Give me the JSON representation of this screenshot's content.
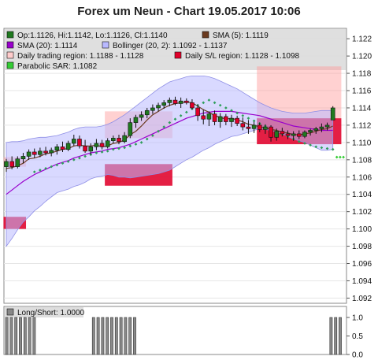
{
  "chart_data": [
    {
      "type": "candlestick",
      "title": "Forex um Neun - Chart 19.05.2017 10:06",
      "ylim": [
        1.0914,
        1.1232
      ],
      "yticks": [
        "1.122",
        "1.120",
        "1.118",
        "1.116",
        "1.114",
        "1.112",
        "1.110",
        "1.108",
        "1.106",
        "1.104",
        "1.102",
        "1.100",
        "1.098",
        "1.096",
        "1.094",
        "1.092"
      ],
      "grid": true,
      "legend_placement": "top",
      "legend": [
        {
          "label": "Op:1.1126, Hi:1.1142, Lo:1.1126, Cl:1.1140",
          "color": "#1f7a1f",
          "icon": "candle-swatch"
        },
        {
          "label": "SMA (5): 1.1119",
          "color": "#6b3a1f",
          "icon": "line-swatch"
        },
        {
          "label": "SMA (20): 1.1114",
          "color": "#9900cc",
          "icon": "line-swatch"
        },
        {
          "label": "Bollinger (20, 2): 1.1092 - 1.1137",
          "color": "#b9b9ff",
          "icon": "band-swatch"
        },
        {
          "label": "Daily trading region: 1.1188 - 1.1128",
          "color": "#ffcccc",
          "icon": "region-swatch"
        },
        {
          "label": "Daily S/L region: 1.1128 - 1.1098",
          "color": "#e0002a",
          "icon": "region-swatch"
        },
        {
          "label": "Parabolic SAR: 1.1082",
          "color": "#33cc33",
          "icon": "dot-swatch"
        }
      ],
      "candles": [
        {
          "o": 1.1072,
          "h": 1.1081,
          "l": 1.1066,
          "c": 1.1078
        },
        {
          "o": 1.1078,
          "h": 1.1084,
          "l": 1.1069,
          "c": 1.1072
        },
        {
          "o": 1.1072,
          "h": 1.1084,
          "l": 1.107,
          "c": 1.1081
        },
        {
          "o": 1.1081,
          "h": 1.1088,
          "l": 1.1076,
          "c": 1.1084
        },
        {
          "o": 1.1084,
          "h": 1.1092,
          "l": 1.108,
          "c": 1.1089
        },
        {
          "o": 1.1089,
          "h": 1.1093,
          "l": 1.1082,
          "c": 1.1086
        },
        {
          "o": 1.1086,
          "h": 1.1094,
          "l": 1.1083,
          "c": 1.109
        },
        {
          "o": 1.109,
          "h": 1.1095,
          "l": 1.1085,
          "c": 1.1088
        },
        {
          "o": 1.1088,
          "h": 1.1094,
          "l": 1.1084,
          "c": 1.1091
        },
        {
          "o": 1.1091,
          "h": 1.1098,
          "l": 1.1086,
          "c": 1.1095
        },
        {
          "o": 1.1095,
          "h": 1.1101,
          "l": 1.1089,
          "c": 1.1092
        },
        {
          "o": 1.1092,
          "h": 1.1102,
          "l": 1.109,
          "c": 1.1099
        },
        {
          "o": 1.1099,
          "h": 1.1109,
          "l": 1.1096,
          "c": 1.1104
        },
        {
          "o": 1.1104,
          "h": 1.1108,
          "l": 1.1093,
          "c": 1.1096
        },
        {
          "o": 1.1096,
          "h": 1.1103,
          "l": 1.1088,
          "c": 1.109
        },
        {
          "o": 1.109,
          "h": 1.1099,
          "l": 1.1086,
          "c": 1.1095
        },
        {
          "o": 1.1095,
          "h": 1.1104,
          "l": 1.1091,
          "c": 1.1099
        },
        {
          "o": 1.1099,
          "h": 1.1103,
          "l": 1.1092,
          "c": 1.1095
        },
        {
          "o": 1.1095,
          "h": 1.1105,
          "l": 1.1093,
          "c": 1.1102
        },
        {
          "o": 1.1102,
          "h": 1.1108,
          "l": 1.1099,
          "c": 1.1105
        },
        {
          "o": 1.1105,
          "h": 1.1109,
          "l": 1.1098,
          "c": 1.1101
        },
        {
          "o": 1.1101,
          "h": 1.1112,
          "l": 1.1099,
          "c": 1.1108
        },
        {
          "o": 1.1108,
          "h": 1.1128,
          "l": 1.1105,
          "c": 1.1123
        },
        {
          "o": 1.1123,
          "h": 1.1132,
          "l": 1.1117,
          "c": 1.1129
        },
        {
          "o": 1.1129,
          "h": 1.1136,
          "l": 1.1125,
          "c": 1.1132
        },
        {
          "o": 1.1132,
          "h": 1.114,
          "l": 1.1128,
          "c": 1.1137
        },
        {
          "o": 1.1137,
          "h": 1.1144,
          "l": 1.1133,
          "c": 1.114
        },
        {
          "o": 1.114,
          "h": 1.1146,
          "l": 1.1136,
          "c": 1.1143
        },
        {
          "o": 1.1143,
          "h": 1.1149,
          "l": 1.1139,
          "c": 1.1146
        },
        {
          "o": 1.1146,
          "h": 1.1152,
          "l": 1.1142,
          "c": 1.1149
        },
        {
          "o": 1.1149,
          "h": 1.1153,
          "l": 1.1143,
          "c": 1.1145
        },
        {
          "o": 1.1145,
          "h": 1.1152,
          "l": 1.114,
          "c": 1.1148
        },
        {
          "o": 1.1148,
          "h": 1.1151,
          "l": 1.1144,
          "c": 1.1146
        },
        {
          "o": 1.1146,
          "h": 1.115,
          "l": 1.1138,
          "c": 1.114
        },
        {
          "o": 1.114,
          "h": 1.1144,
          "l": 1.1125,
          "c": 1.1131
        },
        {
          "o": 1.1131,
          "h": 1.1138,
          "l": 1.1121,
          "c": 1.1127
        },
        {
          "o": 1.1127,
          "h": 1.1136,
          "l": 1.1119,
          "c": 1.1133
        },
        {
          "o": 1.1133,
          "h": 1.1137,
          "l": 1.112,
          "c": 1.1124
        },
        {
          "o": 1.1124,
          "h": 1.1134,
          "l": 1.1117,
          "c": 1.113
        },
        {
          "o": 1.113,
          "h": 1.1133,
          "l": 1.112,
          "c": 1.1124
        },
        {
          "o": 1.1124,
          "h": 1.1132,
          "l": 1.1118,
          "c": 1.1128
        },
        {
          "o": 1.1128,
          "h": 1.1131,
          "l": 1.1119,
          "c": 1.1122
        },
        {
          "o": 1.1122,
          "h": 1.1129,
          "l": 1.1114,
          "c": 1.1118
        },
        {
          "o": 1.1118,
          "h": 1.1126,
          "l": 1.111,
          "c": 1.1116
        },
        {
          "o": 1.1116,
          "h": 1.1124,
          "l": 1.1111,
          "c": 1.112
        },
        {
          "o": 1.112,
          "h": 1.1123,
          "l": 1.1112,
          "c": 1.1115
        },
        {
          "o": 1.1115,
          "h": 1.1121,
          "l": 1.111,
          "c": 1.1118
        },
        {
          "o": 1.1118,
          "h": 1.112,
          "l": 1.1101,
          "c": 1.1106
        },
        {
          "o": 1.1106,
          "h": 1.1116,
          "l": 1.1102,
          "c": 1.1113
        },
        {
          "o": 1.1113,
          "h": 1.1117,
          "l": 1.1107,
          "c": 1.111
        },
        {
          "o": 1.111,
          "h": 1.1114,
          "l": 1.1104,
          "c": 1.1108
        },
        {
          "o": 1.1108,
          "h": 1.1113,
          "l": 1.1102,
          "c": 1.111
        },
        {
          "o": 1.111,
          "h": 1.1114,
          "l": 1.1104,
          "c": 1.1107
        },
        {
          "o": 1.1107,
          "h": 1.1114,
          "l": 1.1105,
          "c": 1.1112
        },
        {
          "o": 1.1112,
          "h": 1.1116,
          "l": 1.1108,
          "c": 1.1114
        },
        {
          "o": 1.1114,
          "h": 1.1118,
          "l": 1.111,
          "c": 1.1116
        },
        {
          "o": 1.1116,
          "h": 1.1122,
          "l": 1.1112,
          "c": 1.1118
        },
        {
          "o": 1.1118,
          "h": 1.1123,
          "l": 1.1114,
          "c": 1.112
        },
        {
          "o": 1.1126,
          "h": 1.1142,
          "l": 1.1126,
          "c": 1.114
        }
      ],
      "sma5": [
        1.107,
        1.1071,
        1.1073,
        1.1076,
        1.1081,
        1.1082,
        1.1084,
        1.1087,
        1.1088,
        1.109,
        1.1092,
        1.1093,
        1.1096,
        1.1097,
        1.1096,
        1.1096,
        1.1097,
        1.1095,
        1.1096,
        1.1099,
        1.11,
        1.1103,
        1.1109,
        1.1113,
        1.1119,
        1.1126,
        1.1132,
        1.1136,
        1.114,
        1.1143,
        1.1145,
        1.1146,
        1.1147,
        1.1146,
        1.1142,
        1.1138,
        1.1135,
        1.1131,
        1.1129,
        1.1127,
        1.1128,
        1.1126,
        1.1124,
        1.1121,
        1.112,
        1.1118,
        1.1117,
        1.1115,
        1.1114,
        1.1112,
        1.1111,
        1.1109,
        1.1109,
        1.111,
        1.1111,
        1.1113,
        1.1115,
        1.1116,
        1.1119
      ],
      "sma20": [
        1.104,
        1.1045,
        1.105,
        1.1055,
        1.1059,
        1.1063,
        1.1066,
        1.1069,
        1.1072,
        1.1075,
        1.1077,
        1.1079,
        1.1082,
        1.1084,
        1.1086,
        1.1088,
        1.1089,
        1.109,
        1.1092,
        1.1093,
        1.1094,
        1.1096,
        1.1098,
        1.1101,
        1.1104,
        1.1107,
        1.111,
        1.1113,
        1.1116,
        1.1119,
        1.1122,
        1.1125,
        1.1128,
        1.113,
        1.1132,
        1.1134,
        1.1135,
        1.1136,
        1.1136,
        1.1136,
        1.1136,
        1.1135,
        1.1134,
        1.1133,
        1.1132,
        1.1131,
        1.1129,
        1.1127,
        1.1125,
        1.1123,
        1.1121,
        1.1119,
        1.1118,
        1.1117,
        1.1116,
        1.1115,
        1.1114,
        1.1114,
        1.1114
      ],
      "bollinger_upper": [
        1.11,
        1.1101,
        1.1101,
        1.1102,
        1.1104,
        1.1105,
        1.1106,
        1.1106,
        1.1107,
        1.1108,
        1.111,
        1.1112,
        1.1115,
        1.1117,
        1.1118,
        1.1118,
        1.1118,
        1.1119,
        1.1121,
        1.1124,
        1.1128,
        1.1132,
        1.1137,
        1.1142,
        1.1147,
        1.1152,
        1.1157,
        1.1162,
        1.1166,
        1.117,
        1.1172,
        1.1174,
        1.1176,
        1.1177,
        1.1177,
        1.1177,
        1.1176,
        1.1174,
        1.1171,
        1.1168,
        1.1165,
        1.1162,
        1.1158,
        1.1154,
        1.115,
        1.1146,
        1.1143,
        1.114,
        1.1138,
        1.1136,
        1.1135,
        1.1134,
        1.1134,
        1.1134,
        1.1135,
        1.1136,
        1.1137,
        1.1137,
        1.1137
      ],
      "bollinger_lower": [
        1.098,
        1.0989,
        1.0999,
        1.1008,
        1.1014,
        1.1021,
        1.1026,
        1.1032,
        1.1037,
        1.1042,
        1.1044,
        1.1046,
        1.1049,
        1.1051,
        1.1054,
        1.1058,
        1.106,
        1.1061,
        1.1063,
        1.1062,
        1.106,
        1.106,
        1.1059,
        1.106,
        1.1061,
        1.1062,
        1.1063,
        1.1064,
        1.1066,
        1.1068,
        1.1072,
        1.1076,
        1.108,
        1.1083,
        1.1087,
        1.1091,
        1.1094,
        1.1098,
        1.1101,
        1.1104,
        1.1107,
        1.1108,
        1.111,
        1.1112,
        1.1114,
        1.1116,
        1.1115,
        1.1114,
        1.1112,
        1.111,
        1.1107,
        1.1104,
        1.1102,
        1.11,
        1.1097,
        1.1094,
        1.1091,
        1.1091,
        1.1092
      ],
      "sar": [
        null,
        null,
        null,
        null,
        null,
        1.1066,
        1.1068,
        1.107,
        1.1072,
        1.1074,
        1.1076,
        1.1078,
        1.108,
        1.1082,
        1.1084,
        1.1086,
        1.1088,
        1.1089,
        1.109,
        1.1092,
        1.1093,
        1.1094,
        1.1096,
        1.1098,
        1.11,
        1.1104,
        1.1108,
        1.1113,
        1.1118,
        1.1123,
        1.1127,
        1.1131,
        1.1135,
        1.1139,
        1.1143,
        1.1146,
        1.1149,
        1.1146,
        1.1143,
        1.114,
        1.1137,
        1.1134,
        1.1131,
        1.1128,
        1.1125,
        1.1122,
        1.1119,
        1.1116,
        1.1113,
        1.111,
        1.1107,
        1.1104,
        1.1101,
        1.1099,
        1.1097,
        1.1095,
        1.1094,
        1.1093,
        1.1092
      ],
      "sar_extension": [
        1.1083,
        1.1083,
        1.1083,
        1.1082,
        1.1082,
        1.1082,
        1.1082
      ],
      "daily_regions": [
        {
          "start": 0,
          "end": 4,
          "trading": [
            1.1072,
            1.1083
          ],
          "sl": [
            1.1,
            1.1014
          ]
        },
        {
          "start": 18,
          "end": 30,
          "trading": [
            1.1105,
            1.1136
          ],
          "sl": [
            1.105,
            1.1075
          ]
        },
        {
          "start": 45,
          "end": 60,
          "trading": [
            1.1128,
            1.1188
          ],
          "sl": [
            1.1098,
            1.1128
          ]
        },
        {
          "start": 70,
          "end": 74,
          "trading": [
            1.1128,
            1.1188
          ],
          "sl": [
            1.1098,
            1.1128
          ]
        }
      ]
    },
    {
      "type": "bar",
      "legend": [
        {
          "label": "Long/Short: 1.0000",
          "color": "#888888",
          "icon": "bar-swatch"
        }
      ],
      "ylim": [
        0.0,
        1.0
      ],
      "yticks": [
        "1.0",
        "0.5",
        "0.0"
      ],
      "values": [
        1,
        1,
        1,
        1,
        1,
        1,
        1,
        0,
        0,
        0,
        0,
        0,
        0,
        0,
        0,
        0,
        0,
        0,
        0,
        1,
        1,
        1,
        1,
        1,
        1,
        1,
        1,
        1,
        1,
        0,
        0,
        0,
        0,
        0,
        0,
        0,
        0,
        0,
        0,
        0,
        0,
        0,
        0,
        0,
        0,
        0,
        0,
        0,
        0,
        0,
        0,
        0,
        0,
        0,
        0,
        0,
        0,
        0,
        0,
        0,
        0,
        0,
        0,
        0,
        0,
        0,
        0,
        0,
        0,
        0,
        0,
        1,
        1,
        1,
        1
      ]
    }
  ]
}
